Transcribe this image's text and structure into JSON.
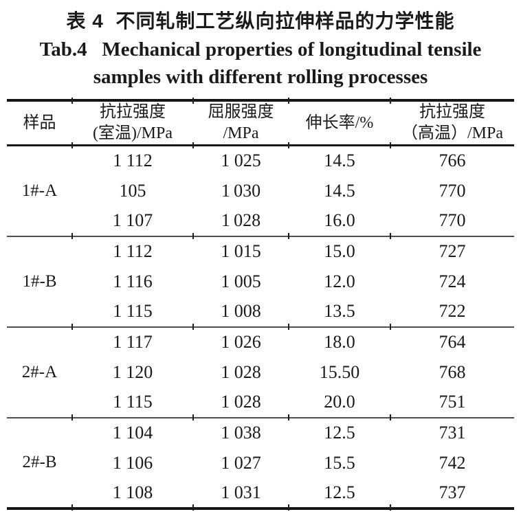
{
  "caption": {
    "chinese": "表 4  不同轧制工艺纵向拉伸样品的力学性能",
    "english_line1": "Tab.4   Mechanical properties of longitudinal tensile",
    "english_line2": "samples with different rolling processes"
  },
  "table": {
    "column_headers": [
      [
        "样品"
      ],
      [
        "抗拉强度",
        "(室温)/MPa"
      ],
      [
        "屈服强度",
        "/MPa"
      ],
      [
        "伸长率/%"
      ],
      [
        "抗拉强度",
        "（高温）/MPa"
      ]
    ],
    "groups": [
      {
        "sample": "1#-A",
        "rows": [
          [
            "1 112",
            "1 025",
            "14.5",
            "766"
          ],
          [
            "105",
            "1 030",
            "14.5",
            "770"
          ],
          [
            "1 107",
            "1 028",
            "16.0",
            "770"
          ]
        ]
      },
      {
        "sample": "1#-B",
        "rows": [
          [
            "1 112",
            "1 015",
            "15.0",
            "727"
          ],
          [
            "1 116",
            "1 005",
            "12.0",
            "724"
          ],
          [
            "1 115",
            "1 008",
            "13.5",
            "722"
          ]
        ]
      },
      {
        "sample": "2#-A",
        "rows": [
          [
            "1 117",
            "1 026",
            "18.0",
            "764"
          ],
          [
            "1 120",
            "1 028",
            "15.50",
            "768"
          ],
          [
            "1 115",
            "1 028",
            "20.0",
            "751"
          ]
        ]
      },
      {
        "sample": "2#-B",
        "rows": [
          [
            "1 104",
            "1 038",
            "12.5",
            "731"
          ],
          [
            "1 106",
            "1 027",
            "15.5",
            "742"
          ],
          [
            "1 108",
            "1 031",
            "12.5",
            "737"
          ]
        ]
      }
    ]
  },
  "colors": {
    "text": "#1a1a1a",
    "rule_heavy": "#161616",
    "rule_light": "#4f4f4f",
    "background": "#ffffff"
  }
}
